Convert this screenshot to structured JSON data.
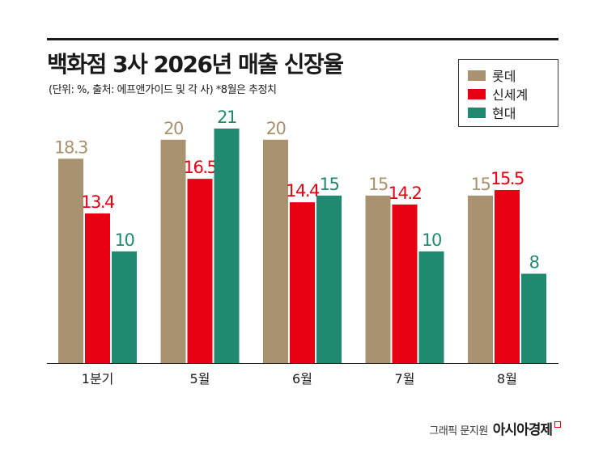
{
  "title": "백화점 3사 2026년 매출 신장율",
  "subtitle": "(단위: %, 출처: 에프앤가이드 및 각 사)  *8월은 추정치",
  "credit": {
    "label": "그래픽 문지원",
    "brand": "아시아경제"
  },
  "colors": {
    "lotte": "#a8926f",
    "shinsegae": "#e60012",
    "hyundai": "#1f8a70"
  },
  "chart_data": {
    "type": "bar",
    "categories": [
      "1분기",
      "5월",
      "6월",
      "7월",
      "8월"
    ],
    "series": [
      {
        "name": "롯데",
        "color": "#a8926f",
        "values": [
          18.3,
          20,
          20,
          15,
          15
        ]
      },
      {
        "name": "신세계",
        "color": "#e60012",
        "values": [
          13.4,
          16.5,
          14.4,
          14.2,
          15.5
        ]
      },
      {
        "name": "현대",
        "color": "#1f8a70",
        "values": [
          10,
          21,
          15,
          10,
          8
        ]
      }
    ],
    "value_labels": [
      [
        "18.3",
        "13.4",
        "10"
      ],
      [
        "20",
        "16.5",
        "21"
      ],
      [
        "20",
        "14.4",
        "15"
      ],
      [
        "15",
        "14.2",
        "10"
      ],
      [
        "15",
        "15.5",
        "8"
      ]
    ],
    "ylim": [
      0,
      21
    ],
    "legend_position": "top-right",
    "grid": false
  }
}
